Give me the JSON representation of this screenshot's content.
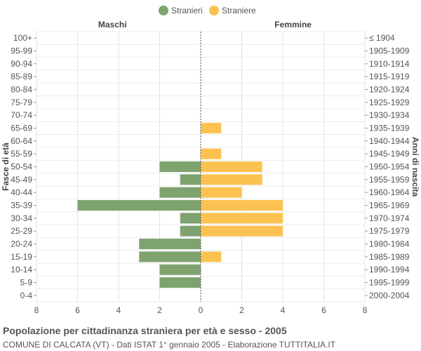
{
  "chart_data": {
    "type": "bar",
    "orientation": "horizontal-population-pyramid",
    "legend": [
      {
        "name": "Stranieri",
        "color": "#7fa36f"
      },
      {
        "name": "Straniere",
        "color": "#fcc251"
      }
    ],
    "left_header": "Maschi",
    "right_header": "Femmine",
    "ylabel_left": "Fasce di età",
    "ylabel_right": "Anni di nascita",
    "xlim": [
      -8,
      8
    ],
    "xticks": [
      "8",
      "6",
      "4",
      "2",
      "0",
      "2",
      "4",
      "6",
      "8"
    ],
    "categories": [
      "100+",
      "95-99",
      "90-94",
      "85-89",
      "80-84",
      "75-79",
      "70-74",
      "65-69",
      "60-64",
      "55-59",
      "50-54",
      "45-49",
      "40-44",
      "35-39",
      "30-34",
      "25-29",
      "20-24",
      "15-19",
      "10-14",
      "5-9",
      "0-4"
    ],
    "birth_years": [
      "≤ 1904",
      "1905-1909",
      "1910-1914",
      "1915-1919",
      "1920-1924",
      "1925-1929",
      "1930-1934",
      "1935-1939",
      "1940-1944",
      "1945-1949",
      "1950-1954",
      "1955-1959",
      "1960-1964",
      "1965-1969",
      "1970-1974",
      "1975-1979",
      "1980-1984",
      "1985-1989",
      "1990-1994",
      "1995-1999",
      "2000-2004"
    ],
    "series": [
      {
        "name": "Stranieri",
        "values": [
          0,
          0,
          0,
          0,
          0,
          0,
          0,
          0,
          0,
          0,
          2,
          1,
          2,
          6,
          1,
          1,
          3,
          3,
          2,
          2,
          0
        ]
      },
      {
        "name": "Straniere",
        "values": [
          0,
          0,
          0,
          0,
          0,
          0,
          0,
          1,
          0,
          1,
          3,
          3,
          2,
          4,
          4,
          4,
          0,
          1,
          0,
          0,
          0
        ]
      }
    ],
    "grid": true
  },
  "caption": {
    "title": "Popolazione per cittadinanza straniera per età e sesso - 2005",
    "subtitle": "COMUNE DI CALCATA (VT) - Dati ISTAT 1° gennaio 2005 - Elaborazione TUTTITALIA.IT"
  }
}
